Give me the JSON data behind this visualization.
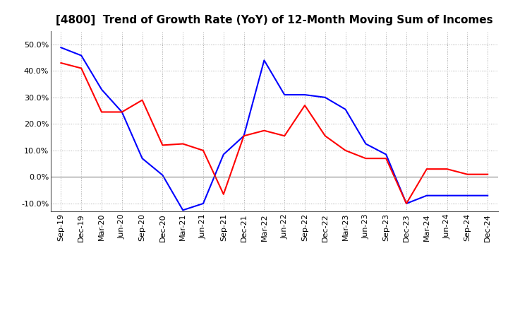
{
  "title": "[4800]  Trend of Growth Rate (YoY) of 12-Month Moving Sum of Incomes",
  "x_labels": [
    "Sep-19",
    "Dec-19",
    "Mar-20",
    "Jun-20",
    "Sep-20",
    "Dec-20",
    "Mar-21",
    "Jun-21",
    "Sep-21",
    "Dec-21",
    "Mar-22",
    "Jun-22",
    "Sep-22",
    "Dec-22",
    "Mar-23",
    "Jun-23",
    "Sep-23",
    "Dec-23",
    "Mar-24",
    "Jun-24",
    "Sep-24",
    "Dec-24"
  ],
  "ordinary_income": [
    0.488,
    0.458,
    0.33,
    0.245,
    0.07,
    0.007,
    -0.125,
    -0.1,
    0.085,
    0.155,
    0.44,
    0.31,
    0.31,
    0.3,
    0.255,
    0.125,
    0.085,
    -0.1,
    -0.07,
    -0.07,
    -0.07,
    -0.07
  ],
  "net_income": [
    0.43,
    0.41,
    0.245,
    0.245,
    0.29,
    0.12,
    0.125,
    0.1,
    -0.065,
    0.155,
    0.175,
    0.155,
    0.27,
    0.155,
    0.1,
    0.07,
    0.07,
    -0.1,
    0.03,
    0.03,
    0.01,
    0.01
  ],
  "ylim": [
    -0.13,
    0.55
  ],
  "yticks": [
    -0.1,
    0.0,
    0.1,
    0.2,
    0.3,
    0.4,
    0.5
  ],
  "line_color_ordinary": "#0000FF",
  "line_color_net": "#FF0000",
  "background_color": "#FFFFFF",
  "grid_color": "#AAAAAA",
  "title_fontsize": 11,
  "axis_fontsize": 8,
  "legend_fontsize": 9
}
